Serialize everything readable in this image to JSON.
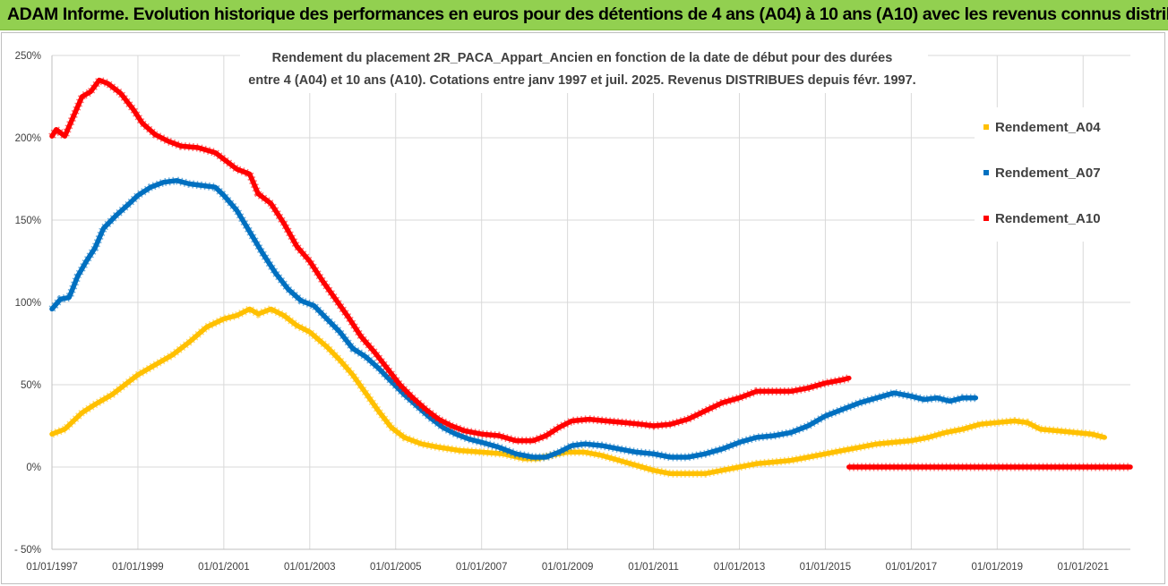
{
  "header": {
    "title": "ADAM Informe. Evolution historique des performances en euros pour des détentions de 4 ans (A04) à 10 ans (A10) avec les revenus connus distribués"
  },
  "colors": {
    "header_bg": "#92d050",
    "A04": "#ffc000",
    "A07": "#0070c0",
    "A10": "#ff0000",
    "grid": "#d9d9d9"
  },
  "chart_data": {
    "type": "line",
    "title": "Rendement du placement 2R_PACA_Appart_Ancien en fonction de la date de début pour des durées entre 4 (A04) et 10 ans (A10).  Cotations entre janv 1997 et juil. 2025. Revenus DISTRIBUES depuis févr. 1997.",
    "title_lines": [
      "Rendement du placement 2R_PACA_Appart_Ancien en fonction de la date de début pour des durées",
      "entre 4 (A04) et 10 ans (A10).  Cotations entre janv 1997 et juil. 2025. Revenus DISTRIBUES depuis févr. 1997."
    ],
    "xlabel": "",
    "ylabel": "",
    "x_ticks": [
      "01/01/1997",
      "01/01/1999",
      "01/01/2001",
      "01/01/2003",
      "01/01/2005",
      "01/01/2007",
      "01/01/2009",
      "01/01/2011",
      "01/01/2013",
      "01/01/2015",
      "01/01/2017",
      "01/01/2019",
      "01/01/2021"
    ],
    "xlim": [
      1997.0,
      2022.1
    ],
    "y_ticks": [
      "250%",
      "200%",
      "150%",
      "100%",
      "50%",
      "0%",
      "- 50%"
    ],
    "ylim": [
      -50,
      250
    ],
    "grid": true,
    "legend_position": "right",
    "series": [
      {
        "name": "Rendement_A04",
        "color": "#ffc000",
        "points": [
          [
            1997.0,
            20
          ],
          [
            1997.3,
            23
          ],
          [
            1997.7,
            33
          ],
          [
            1998.0,
            38
          ],
          [
            1998.4,
            44
          ],
          [
            1998.8,
            52
          ],
          [
            1999.0,
            56
          ],
          [
            1999.4,
            62
          ],
          [
            1999.8,
            68
          ],
          [
            2000.2,
            76
          ],
          [
            2000.6,
            85
          ],
          [
            2001.0,
            90
          ],
          [
            2001.3,
            92
          ],
          [
            2001.6,
            96
          ],
          [
            2001.8,
            93
          ],
          [
            2002.1,
            96
          ],
          [
            2002.4,
            92
          ],
          [
            2002.7,
            86
          ],
          [
            2003.0,
            82
          ],
          [
            2003.4,
            73
          ],
          [
            2003.7,
            65
          ],
          [
            2004.0,
            56
          ],
          [
            2004.3,
            45
          ],
          [
            2004.6,
            34
          ],
          [
            2004.9,
            24
          ],
          [
            2005.2,
            18
          ],
          [
            2005.6,
            14
          ],
          [
            2006.0,
            12
          ],
          [
            2006.5,
            10
          ],
          [
            2007.0,
            9
          ],
          [
            2007.5,
            8
          ],
          [
            2008.0,
            5
          ],
          [
            2008.3,
            5
          ],
          [
            2008.6,
            7
          ],
          [
            2009.0,
            9
          ],
          [
            2009.4,
            9
          ],
          [
            2009.8,
            7
          ],
          [
            2010.2,
            4
          ],
          [
            2010.6,
            1
          ],
          [
            2011.0,
            -2
          ],
          [
            2011.4,
            -4
          ],
          [
            2011.8,
            -4
          ],
          [
            2012.2,
            -4
          ],
          [
            2012.6,
            -2
          ],
          [
            2013.0,
            0
          ],
          [
            2013.4,
            2
          ],
          [
            2013.8,
            3
          ],
          [
            2014.2,
            4
          ],
          [
            2014.6,
            6
          ],
          [
            2015.0,
            8
          ],
          [
            2015.4,
            10
          ],
          [
            2015.8,
            12
          ],
          [
            2016.2,
            14
          ],
          [
            2016.6,
            15
          ],
          [
            2017.0,
            16
          ],
          [
            2017.4,
            18
          ],
          [
            2017.8,
            21
          ],
          [
            2018.2,
            23
          ],
          [
            2018.6,
            26
          ],
          [
            2019.0,
            27
          ],
          [
            2019.4,
            28
          ],
          [
            2019.7,
            27
          ],
          [
            2020.0,
            23
          ],
          [
            2020.4,
            22
          ],
          [
            2020.8,
            21
          ],
          [
            2021.2,
            20
          ],
          [
            2021.5,
            18
          ]
        ]
      },
      {
        "name": "Rendement_A07",
        "color": "#0070c0",
        "points": [
          [
            1997.0,
            96
          ],
          [
            1997.2,
            102
          ],
          [
            1997.4,
            103
          ],
          [
            1997.6,
            116
          ],
          [
            1997.8,
            125
          ],
          [
            1998.0,
            133
          ],
          [
            1998.2,
            145
          ],
          [
            1998.5,
            153
          ],
          [
            1998.8,
            160
          ],
          [
            1999.0,
            165
          ],
          [
            1999.3,
            170
          ],
          [
            1999.6,
            173
          ],
          [
            1999.9,
            174
          ],
          [
            2000.2,
            172
          ],
          [
            2000.5,
            171
          ],
          [
            2000.8,
            170
          ],
          [
            2001.0,
            165
          ],
          [
            2001.3,
            156
          ],
          [
            2001.6,
            143
          ],
          [
            2001.9,
            130
          ],
          [
            2002.2,
            118
          ],
          [
            2002.5,
            108
          ],
          [
            2002.8,
            101
          ],
          [
            2003.1,
            98
          ],
          [
            2003.4,
            90
          ],
          [
            2003.7,
            82
          ],
          [
            2004.0,
            72
          ],
          [
            2004.3,
            67
          ],
          [
            2004.6,
            60
          ],
          [
            2004.9,
            52
          ],
          [
            2005.2,
            44
          ],
          [
            2005.5,
            37
          ],
          [
            2005.8,
            30
          ],
          [
            2006.1,
            24
          ],
          [
            2006.4,
            20
          ],
          [
            2006.7,
            17
          ],
          [
            2007.0,
            15
          ],
          [
            2007.4,
            12
          ],
          [
            2007.8,
            8
          ],
          [
            2008.2,
            6
          ],
          [
            2008.5,
            6
          ],
          [
            2008.8,
            9
          ],
          [
            2009.1,
            13
          ],
          [
            2009.4,
            14
          ],
          [
            2009.8,
            13
          ],
          [
            2010.2,
            11
          ],
          [
            2010.6,
            9
          ],
          [
            2011.0,
            8
          ],
          [
            2011.4,
            6
          ],
          [
            2011.8,
            6
          ],
          [
            2012.2,
            8
          ],
          [
            2012.6,
            11
          ],
          [
            2013.0,
            15
          ],
          [
            2013.4,
            18
          ],
          [
            2013.8,
            19
          ],
          [
            2014.2,
            21
          ],
          [
            2014.6,
            25
          ],
          [
            2015.0,
            31
          ],
          [
            2015.4,
            35
          ],
          [
            2015.8,
            39
          ],
          [
            2016.2,
            42
          ],
          [
            2016.6,
            45
          ],
          [
            2017.0,
            43
          ],
          [
            2017.3,
            41
          ],
          [
            2017.6,
            42
          ],
          [
            2017.9,
            40
          ],
          [
            2018.2,
            42
          ],
          [
            2018.5,
            42
          ]
        ]
      },
      {
        "name": "Rendement_A10",
        "color": "#ff0000",
        "points": [
          [
            1997.0,
            201
          ],
          [
            1997.1,
            205
          ],
          [
            1997.3,
            201
          ],
          [
            1997.5,
            213
          ],
          [
            1997.7,
            225
          ],
          [
            1997.9,
            228
          ],
          [
            1998.1,
            235
          ],
          [
            1998.3,
            233
          ],
          [
            1998.6,
            227
          ],
          [
            1998.9,
            217
          ],
          [
            1999.1,
            209
          ],
          [
            1999.4,
            202
          ],
          [
            1999.7,
            198
          ],
          [
            2000.0,
            195
          ],
          [
            2000.4,
            194
          ],
          [
            2000.8,
            191
          ],
          [
            2001.0,
            187
          ],
          [
            2001.3,
            181
          ],
          [
            2001.6,
            178
          ],
          [
            2001.8,
            166
          ],
          [
            2002.1,
            160
          ],
          [
            2002.4,
            148
          ],
          [
            2002.7,
            134
          ],
          [
            2003.0,
            125
          ],
          [
            2003.3,
            113
          ],
          [
            2003.6,
            102
          ],
          [
            2003.9,
            91
          ],
          [
            2004.2,
            79
          ],
          [
            2004.5,
            70
          ],
          [
            2004.8,
            60
          ],
          [
            2005.1,
            50
          ],
          [
            2005.4,
            42
          ],
          [
            2005.7,
            35
          ],
          [
            2006.0,
            29
          ],
          [
            2006.3,
            25
          ],
          [
            2006.6,
            22
          ],
          [
            2007.0,
            20
          ],
          [
            2007.4,
            19
          ],
          [
            2007.8,
            16
          ],
          [
            2008.2,
            16
          ],
          [
            2008.5,
            19
          ],
          [
            2008.8,
            24
          ],
          [
            2009.1,
            28
          ],
          [
            2009.5,
            29
          ],
          [
            2009.9,
            28
          ],
          [
            2010.3,
            27
          ],
          [
            2010.7,
            26
          ],
          [
            2011.0,
            25
          ],
          [
            2011.4,
            26
          ],
          [
            2011.8,
            29
          ],
          [
            2012.2,
            34
          ],
          [
            2012.6,
            39
          ],
          [
            2013.0,
            42
          ],
          [
            2013.4,
            46
          ],
          [
            2013.8,
            46
          ],
          [
            2014.2,
            46
          ],
          [
            2014.6,
            48
          ],
          [
            2015.0,
            51
          ],
          [
            2015.4,
            53
          ],
          [
            2015.55,
            54
          ]
        ],
        "segment2": [
          [
            2015.55,
            0
          ],
          [
            2022.1,
            0
          ]
        ]
      }
    ]
  }
}
